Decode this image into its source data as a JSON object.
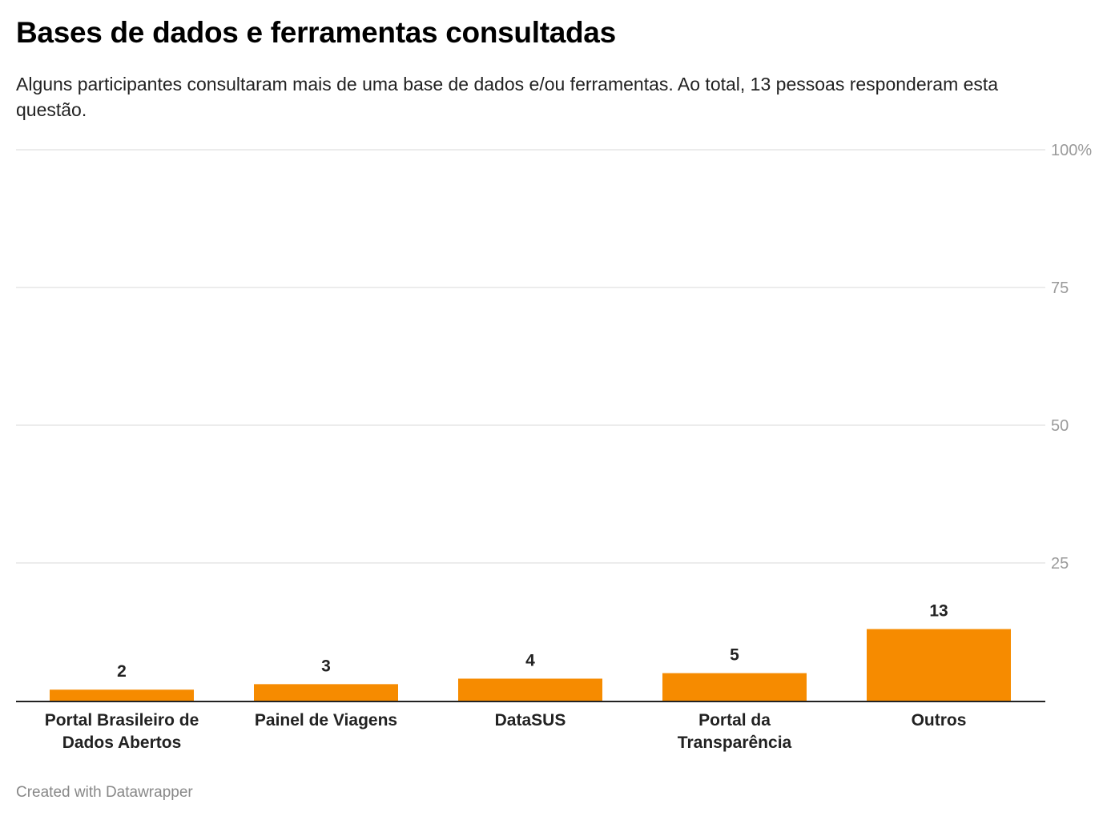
{
  "title": "Bases de dados e ferramentas consultadas",
  "subtitle": "Alguns participantes consultaram mais de uma base de dados e/ou ferramentas. Ao total, 13 pessoas responderam esta questão.",
  "footer": "Created with Datawrapper",
  "colors": {
    "bar": "#F68B00",
    "grid": "#e6e6e6",
    "axis": "#222222"
  },
  "chart_data": {
    "type": "bar",
    "categories": [
      [
        "Portal Brasileiro de",
        "Dados Abertos"
      ],
      [
        "Painel de Viagens"
      ],
      [
        "DataSUS"
      ],
      [
        "Portal da",
        "Transparência"
      ],
      [
        "Outros"
      ]
    ],
    "values": [
      2,
      3,
      4,
      5,
      13
    ],
    "value_labels": [
      "2",
      "3",
      "4",
      "5",
      "13"
    ],
    "ylim": [
      0,
      100
    ],
    "yticks": [
      25,
      50,
      75,
      100
    ],
    "ytick_labels": [
      "25",
      "50",
      "75",
      "100%"
    ],
    "grid": true
  }
}
